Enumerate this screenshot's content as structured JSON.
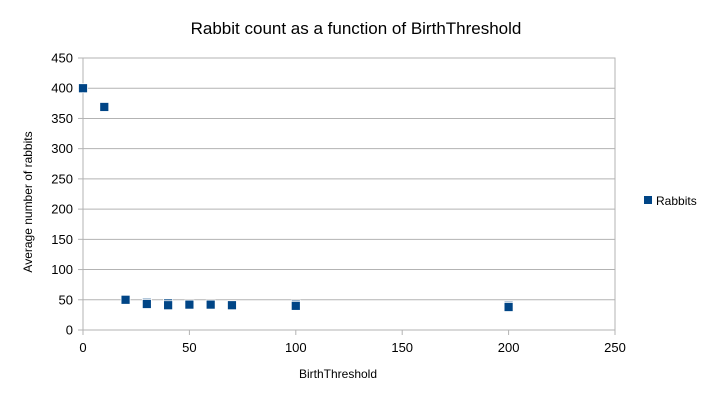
{
  "chart_data": {
    "type": "scatter",
    "title": "Rabbit count as a function of BirthThreshold",
    "xlabel": "BirthThreshold",
    "ylabel": "Average number of rabbits",
    "xlim": [
      0,
      250
    ],
    "ylim": [
      0,
      450
    ],
    "x_ticks": [
      0,
      50,
      100,
      150,
      200,
      250
    ],
    "y_ticks": [
      0,
      50,
      100,
      150,
      200,
      250,
      300,
      350,
      400,
      450
    ],
    "grid": "horizontal",
    "legend_position": "right",
    "series": [
      {
        "name": "Rabbits",
        "color": "#004586",
        "marker": "square",
        "points": [
          {
            "x": 0,
            "y": 400
          },
          {
            "x": 10,
            "y": 369
          },
          {
            "x": 20,
            "y": 50
          },
          {
            "x": 30,
            "y": 45
          },
          {
            "x": 30,
            "y": 43
          },
          {
            "x": 40,
            "y": 44
          },
          {
            "x": 40,
            "y": 41
          },
          {
            "x": 50,
            "y": 42
          },
          {
            "x": 60,
            "y": 42
          },
          {
            "x": 70,
            "y": 41
          },
          {
            "x": 100,
            "y": 42
          },
          {
            "x": 100,
            "y": 40
          },
          {
            "x": 200,
            "y": 40
          },
          {
            "x": 200,
            "y": 38
          }
        ]
      }
    ]
  }
}
